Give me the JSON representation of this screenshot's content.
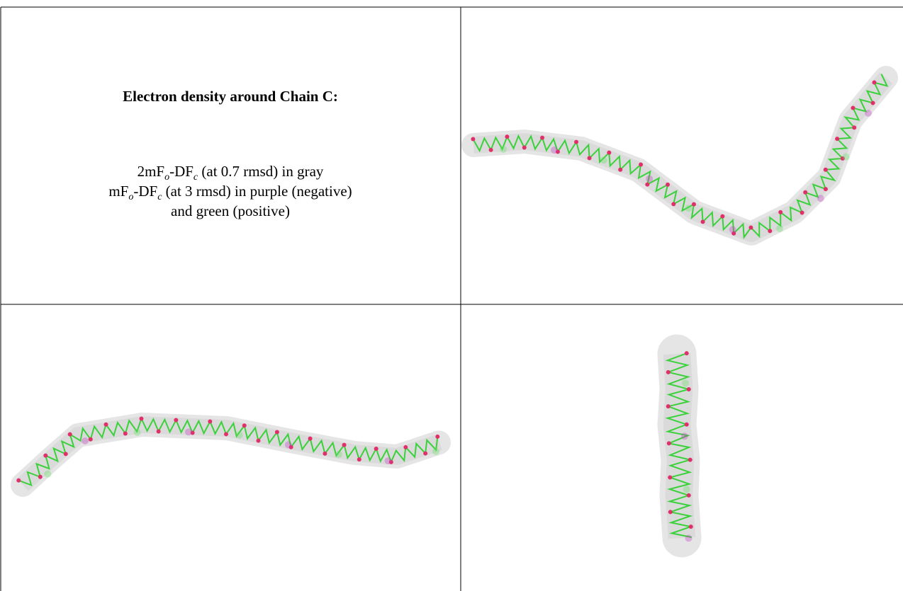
{
  "caption": {
    "title": "Electron density around Chain C:",
    "line1": [
      "2mF",
      "o",
      "-DF",
      "c",
      " (at 0.7 rmsd) in gray"
    ],
    "line2": [
      "mF",
      "o",
      "-DF",
      "c",
      " (at 3 rmsd) in purple (negative)"
    ],
    "line3": "and green (positive)"
  }
}
